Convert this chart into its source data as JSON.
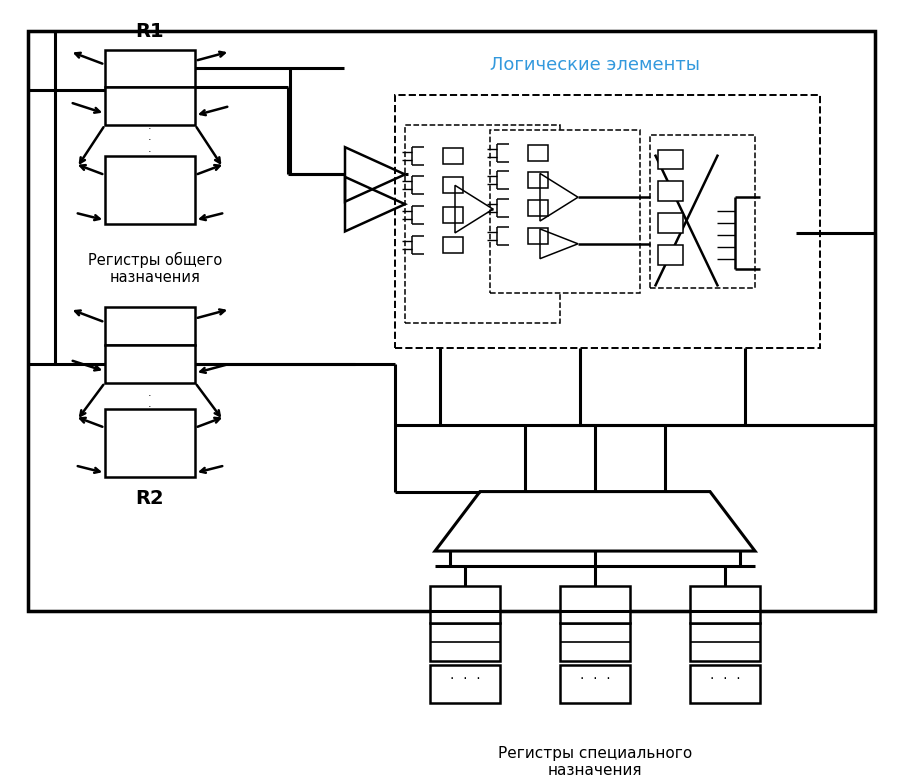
{
  "bg_color": "#ffffff",
  "line_color": "#000000",
  "blue_color": "#3399dd",
  "label_r1": "R1",
  "label_r2": "R2",
  "label_gp_reg": "Регистры общего\nназначения",
  "label_sp_reg": "Регистры специального\nназначения",
  "label_logic": "Логические элементы",
  "figsize": [
    9.0,
    7.81
  ],
  "dpi": 100
}
